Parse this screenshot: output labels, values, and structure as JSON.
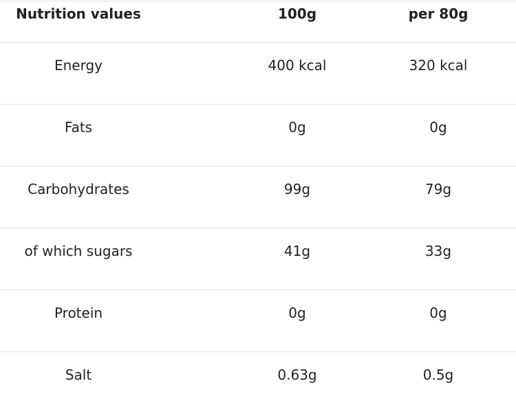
{
  "table": {
    "header": [
      "Nutrition values",
      "100g",
      "per 80g"
    ],
    "rows": [
      [
        "Energy",
        "400 kcal",
        "320 kcal"
      ],
      [
        "Fats",
        "0g",
        "0g"
      ],
      [
        "Carbohydrates",
        "99g",
        "79g"
      ],
      [
        "of which sugars",
        "41g",
        "33g"
      ],
      [
        "Protein",
        "0g",
        "0g"
      ],
      [
        "Salt",
        "0.63g",
        "0.5g"
      ]
    ]
  }
}
